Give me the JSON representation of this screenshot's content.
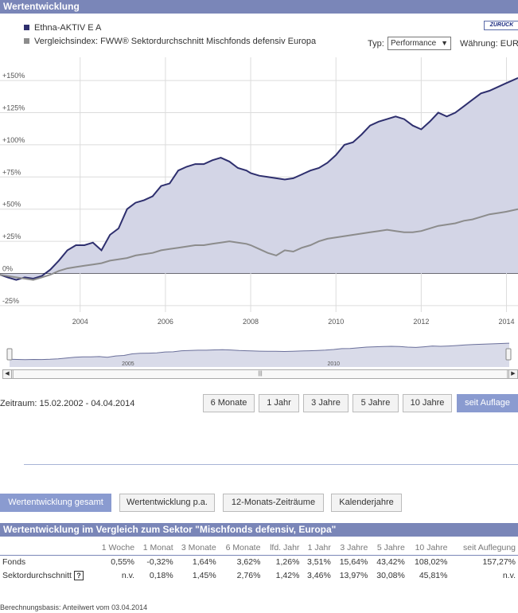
{
  "header": {
    "title": "Wertentwicklung"
  },
  "legend": [
    {
      "label": "Ethna-AKTIV E A",
      "color": "#2e2f6e"
    },
    {
      "label": "Vergleichsindex: FWW® Sektordurchschnitt Mischfonds defensiv Europa",
      "color": "#8c8c8c"
    }
  ],
  "back_button": "ZURÜCK",
  "type_label": "Typ:",
  "type_value": "Performance",
  "currency_label": "Währung: EUR",
  "range_label": "Zeitraum: 15.02.2002 - 04.04.2014",
  "periods": [
    "6 Monate",
    "1 Jahr",
    "3 Jahre",
    "5 Jahre",
    "10 Jahre",
    "seit Auflage"
  ],
  "active_period": "seit Auflage",
  "view_tabs": [
    "Wertentwicklung gesamt",
    "Wertentwicklung p.a.",
    "12-Monats-Zeiträume",
    "Kalenderjahre"
  ],
  "active_view": "Wertentwicklung gesamt",
  "comparison_title": "Wertentwicklung im Vergleich zum Sektor \"Mischfonds defensiv, Europa\"",
  "table": {
    "headers": [
      "1 Woche",
      "1 Monat",
      "3 Monate",
      "6 Monate",
      "lfd. Jahr",
      "1 Jahr",
      "3 Jahre",
      "5 Jahre",
      "10 Jahre",
      "seit Auflegung"
    ],
    "rows": [
      {
        "label": "Fonds",
        "values": [
          "0,55%",
          "-0,32%",
          "1,64%",
          "3,62%",
          "1,26%",
          "3,51%",
          "15,64%",
          "43,42%",
          "108,02%",
          "157,27%"
        ]
      },
      {
        "label": "Sektordurchschnitt",
        "values": [
          "n.v.",
          "0,18%",
          "1,45%",
          "2,76%",
          "1,42%",
          "3,46%",
          "13,97%",
          "30,08%",
          "45,81%",
          "n.v."
        ]
      }
    ],
    "help_icon": "?"
  },
  "footnote": "Berechnungsbasis: Anteilwert vom 03.04.2014",
  "chart_data": {
    "type": "area",
    "x_ticks": [
      "2004",
      "2006",
      "2008",
      "2010",
      "2012",
      "2014"
    ],
    "y_ticks": [
      "-25%",
      "0%",
      "+25%",
      "+50%",
      "+75%",
      "+100%",
      "+125%",
      "+150%"
    ],
    "y_tick_values": [
      -25,
      0,
      25,
      50,
      75,
      100,
      125,
      150
    ],
    "xlim": [
      2002.12,
      2014.27
    ],
    "ylim": [
      -30,
      168
    ],
    "grid": true,
    "series": [
      {
        "name": "Ethna-AKTIV E A",
        "color": "#2e2f6e",
        "x": [
          2002.12,
          2002.3,
          2002.5,
          2002.7,
          2002.9,
          2003.1,
          2003.3,
          2003.5,
          2003.7,
          2003.9,
          2004.1,
          2004.3,
          2004.5,
          2004.7,
          2004.9,
          2005.1,
          2005.3,
          2005.5,
          2005.7,
          2005.9,
          2006.1,
          2006.3,
          2006.5,
          2006.7,
          2006.9,
          2007.1,
          2007.3,
          2007.5,
          2007.7,
          2007.9,
          2008.0,
          2008.2,
          2008.4,
          2008.6,
          2008.8,
          2009.0,
          2009.2,
          2009.4,
          2009.6,
          2009.8,
          2010.0,
          2010.2,
          2010.4,
          2010.6,
          2010.8,
          2011.0,
          2011.2,
          2011.4,
          2011.6,
          2011.8,
          2012.0,
          2012.2,
          2012.4,
          2012.6,
          2012.8,
          2013.0,
          2013.2,
          2013.4,
          2013.6,
          2013.8,
          2014.0,
          2014.27
        ],
        "values": [
          -1,
          -3,
          -5,
          -3,
          -4,
          -2,
          3,
          10,
          18,
          22,
          22,
          24,
          18,
          30,
          35,
          50,
          55,
          57,
          60,
          68,
          70,
          80,
          83,
          85,
          85,
          88,
          90,
          87,
          82,
          80,
          78,
          76,
          75,
          74,
          73,
          74,
          77,
          80,
          82,
          86,
          92,
          100,
          102,
          108,
          115,
          118,
          120,
          122,
          120,
          115,
          112,
          118,
          125,
          122,
          125,
          130,
          135,
          140,
          142,
          145,
          148,
          152
        ]
      },
      {
        "name": "Vergleichsindex: FWW® Sektordurchschnitt Mischfonds defensiv Europa",
        "color": "#8c8c8c",
        "x": [
          2002.12,
          2002.3,
          2002.5,
          2002.7,
          2002.9,
          2003.1,
          2003.3,
          2003.5,
          2003.7,
          2003.9,
          2004.1,
          2004.3,
          2004.5,
          2004.7,
          2004.9,
          2005.1,
          2005.3,
          2005.5,
          2005.7,
          2005.9,
          2006.1,
          2006.3,
          2006.5,
          2006.7,
          2006.9,
          2007.1,
          2007.3,
          2007.5,
          2007.7,
          2007.9,
          2008.0,
          2008.2,
          2008.4,
          2008.6,
          2008.8,
          2009.0,
          2009.2,
          2009.4,
          2009.6,
          2009.8,
          2010.0,
          2010.2,
          2010.4,
          2010.6,
          2010.8,
          2011.0,
          2011.2,
          2011.4,
          2011.6,
          2011.8,
          2012.0,
          2012.2,
          2012.4,
          2012.6,
          2012.8,
          2013.0,
          2013.2,
          2013.4,
          2013.6,
          2013.8,
          2014.0,
          2014.27
        ],
        "values": [
          -1,
          -2,
          -3,
          -4,
          -5,
          -3,
          -1,
          2,
          4,
          5,
          6,
          7,
          8,
          10,
          11,
          12,
          14,
          15,
          16,
          18,
          19,
          20,
          21,
          22,
          22,
          23,
          24,
          25,
          24,
          23,
          22,
          19,
          16,
          14,
          18,
          17,
          20,
          22,
          25,
          27,
          28,
          29,
          30,
          31,
          32,
          33,
          34,
          33,
          32,
          32,
          33,
          35,
          37,
          38,
          39,
          41,
          42,
          44,
          46,
          47,
          48,
          50
        ]
      }
    ],
    "navigator": {
      "x_ticks": [
        "2005",
        "2010"
      ]
    }
  }
}
